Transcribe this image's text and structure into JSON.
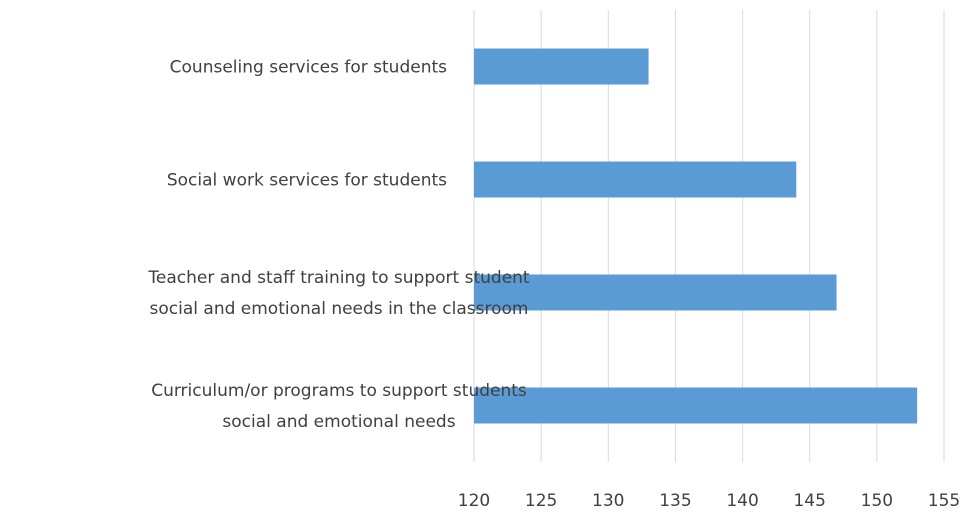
{
  "chart_data": {
    "type": "bar",
    "orientation": "horizontal",
    "categories": [
      [
        "Counseling services for students"
      ],
      [
        "Social work services for students"
      ],
      [
        "Teacher and staff training to support student",
        "social and emotional needs in the classroom"
      ],
      [
        "Curriculum/or programs to support students",
        "social and emotional needs"
      ]
    ],
    "values": [
      133,
      144,
      147,
      153
    ],
    "xlim": [
      120,
      155
    ],
    "xticks": [
      "120",
      "125",
      "130",
      "135",
      "140",
      "145",
      "150",
      "155"
    ],
    "xtick_values": [
      120,
      125,
      130,
      135,
      140,
      145,
      150,
      155
    ],
    "title": "",
    "xlabel": "",
    "ylabel": "",
    "grid": "vertical",
    "legend": "none",
    "bar_color": "#5b9bd5",
    "grid_color": "#d9d9d9",
    "text_color": "#404040"
  }
}
